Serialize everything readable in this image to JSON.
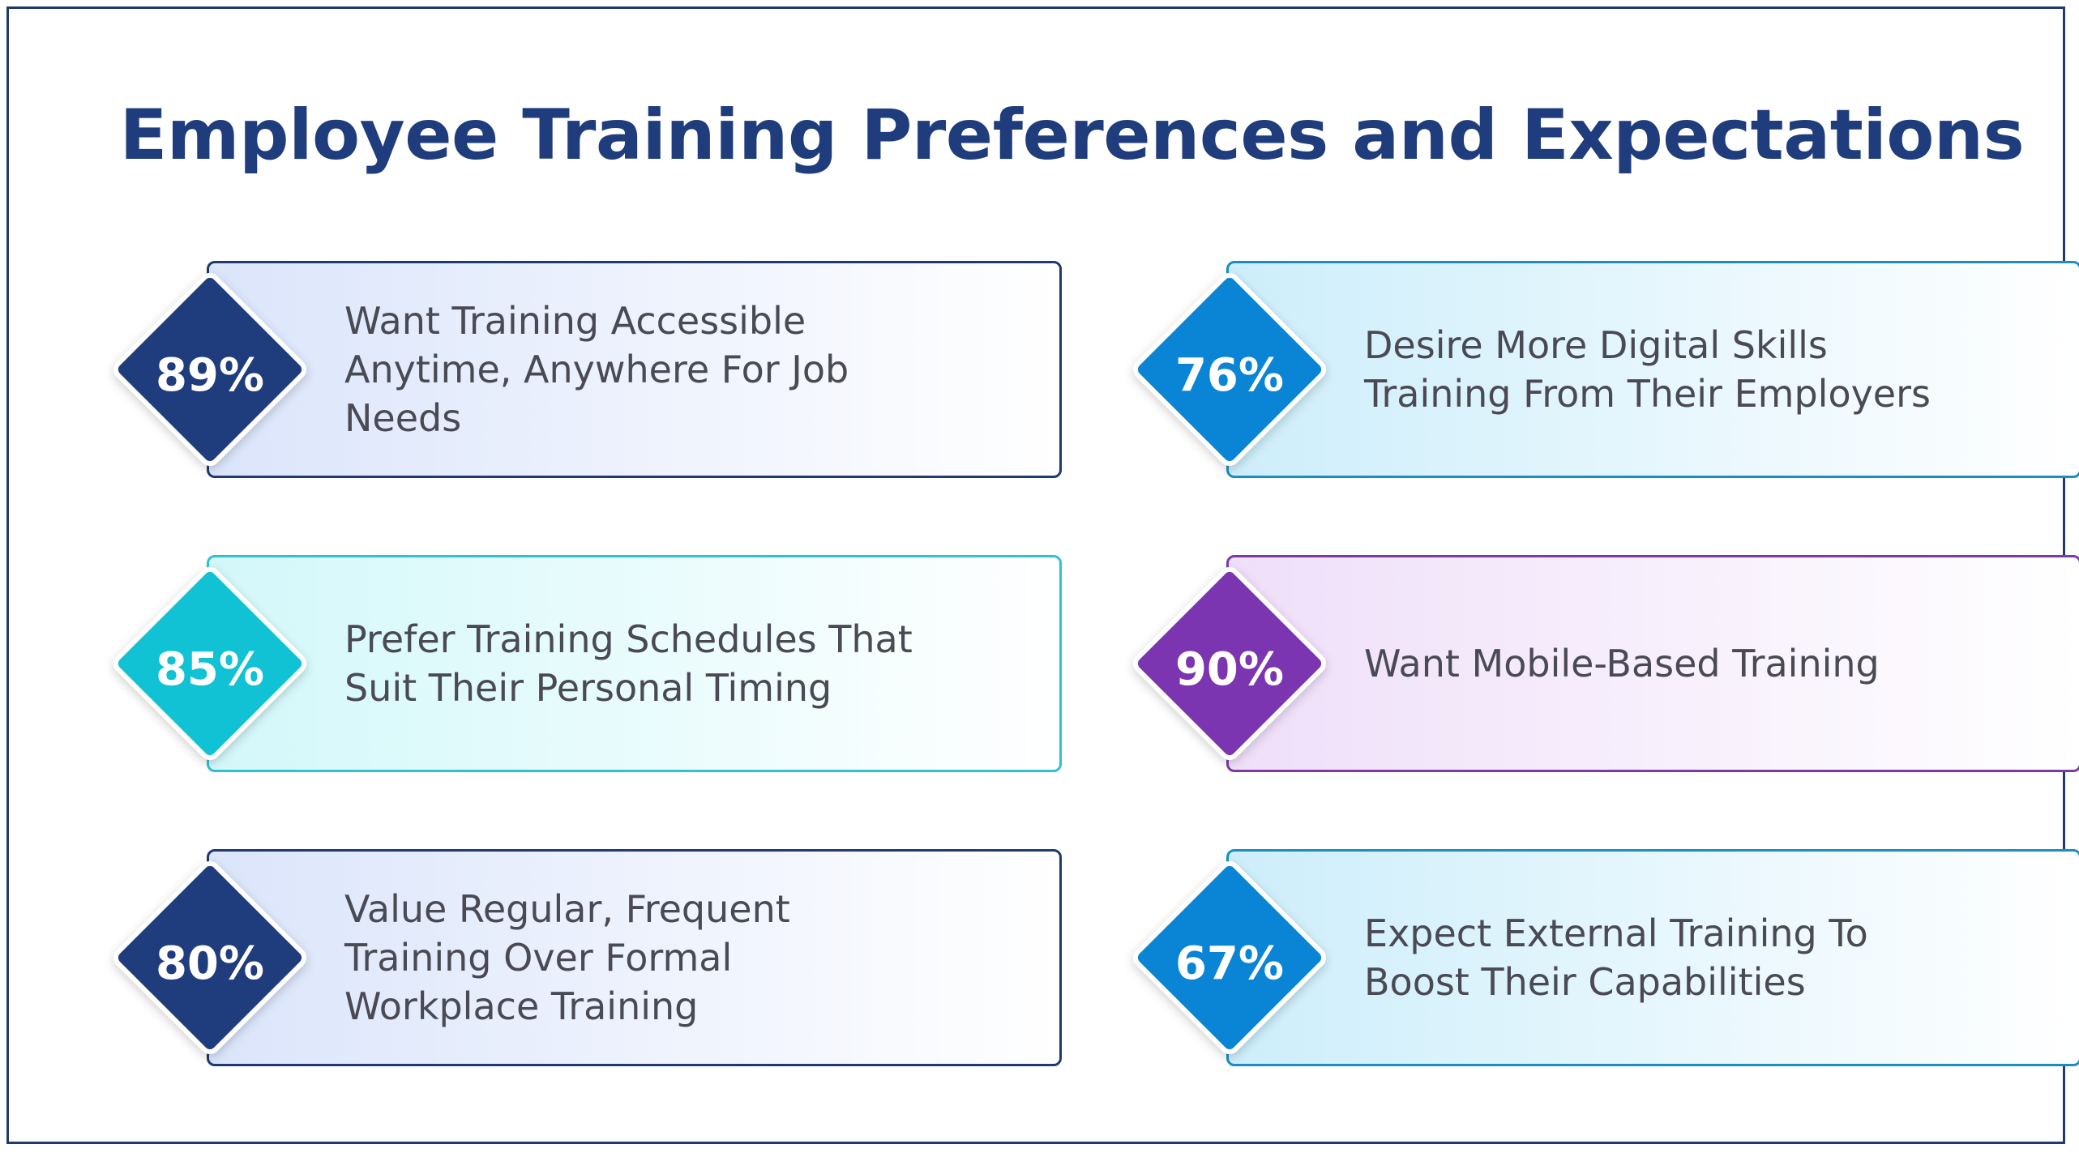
{
  "title": "Employee Training Preferences and Expectations",
  "stats": [
    {
      "percent": "89%",
      "lines": [
        "Want Training Accessible",
        "Anytime, Anywhere For Job",
        "Needs"
      ],
      "color": "#1f3c7d",
      "border": "#1e3a6e",
      "tint": "#dbe5fb"
    },
    {
      "percent": "76%",
      "lines": [
        "Desire More Digital Skills",
        "Training From Their Employers"
      ],
      "color": "#0a84d4",
      "border": "#1a8ec4",
      "tint": "#cdeefb"
    },
    {
      "percent": "85%",
      "lines": [
        "Prefer Training Schedules That",
        "Suit Their Personal Timing"
      ],
      "color": "#11c2d4",
      "border": "#2fc3cf",
      "tint": "#d3f8fa"
    },
    {
      "percent": "90%",
      "lines": [
        "Want Mobile-Based Training"
      ],
      "color": "#7b35b0",
      "border": "#7b3aa8",
      "tint": "#efdff9"
    },
    {
      "percent": "80%",
      "lines": [
        "Value Regular, Frequent",
        "Training Over Formal",
        "Workplace Training"
      ],
      "color": "#1f3c7d",
      "border": "#1e3a6e",
      "tint": "#dbe5fb"
    },
    {
      "percent": "67%",
      "lines": [
        "Expect External Training To",
        "Boost Their Capabilities"
      ],
      "color": "#0a84d4",
      "border": "#1a8ec4",
      "tint": "#cdeefb"
    }
  ]
}
